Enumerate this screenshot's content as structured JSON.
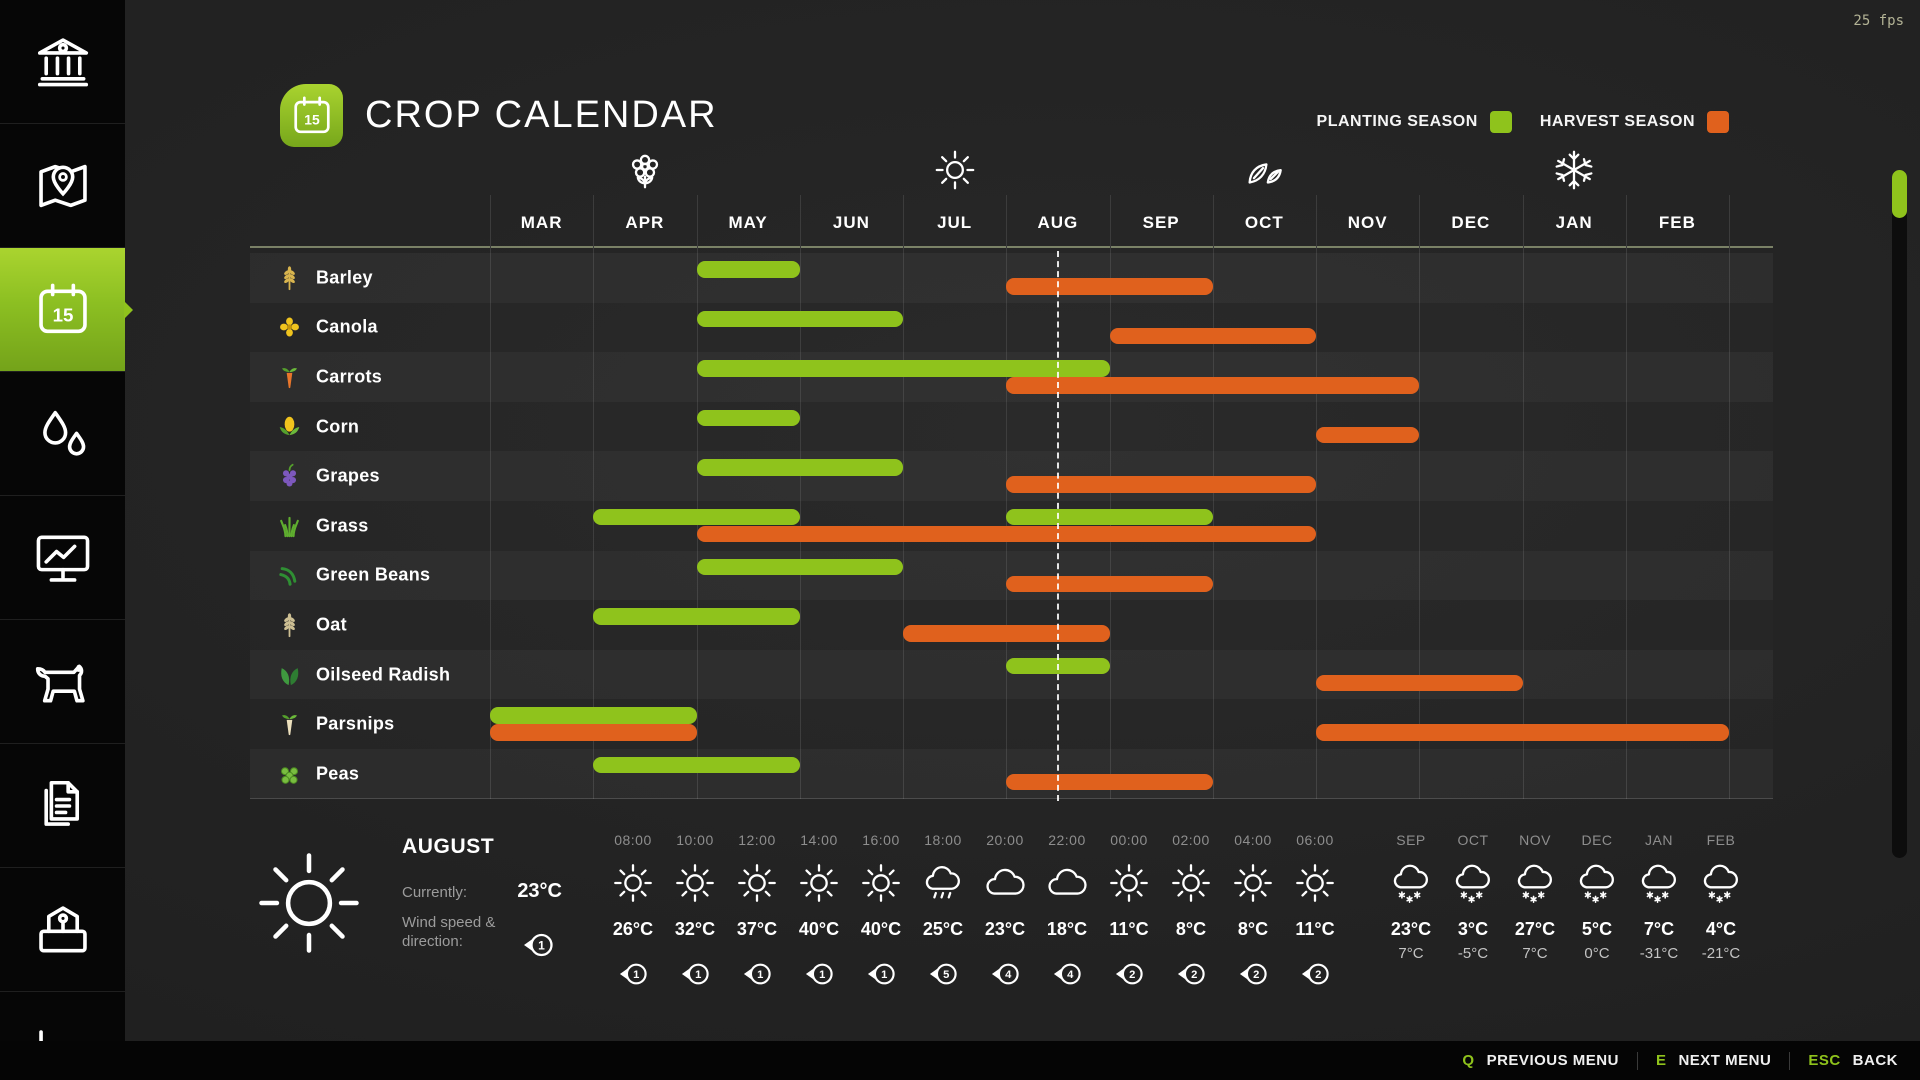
{
  "fps": "25 fps",
  "header": {
    "title": "CROP CALENDAR",
    "icon_day": "15",
    "legend": [
      {
        "id": "planting",
        "label": "PLANTING SEASON",
        "color": "#8fc31c"
      },
      {
        "id": "harvest",
        "label": "HARVEST SEASON",
        "color": "#e0611d"
      }
    ]
  },
  "colors": {
    "planting": "#8fc31c",
    "harvest": "#e0611d"
  },
  "sidebar": {
    "items": [
      {
        "name": "finances",
        "icon": "finances-icon",
        "active": false
      },
      {
        "name": "map",
        "icon": "map-icon",
        "active": false
      },
      {
        "name": "calendar",
        "icon": "calendar-icon",
        "active": true,
        "day": "15"
      },
      {
        "name": "water",
        "icon": "water-drops-icon",
        "active": false
      },
      {
        "name": "prices",
        "icon": "prices-chart-icon",
        "active": false
      },
      {
        "name": "animals",
        "icon": "animals-icon",
        "active": false
      },
      {
        "name": "contracts",
        "icon": "contracts-icon",
        "active": false
      },
      {
        "name": "production",
        "icon": "production-icon",
        "active": false
      },
      {
        "name": "statistics",
        "icon": "statistics-icon",
        "active": false
      }
    ]
  },
  "calendar": {
    "months": [
      "MAR",
      "APR",
      "MAY",
      "JUN",
      "JUL",
      "AUG",
      "SEP",
      "OCT",
      "NOV",
      "DEC",
      "JAN",
      "FEB"
    ],
    "season_icons": [
      {
        "icon": "spring-flower-icon",
        "month_index": 1
      },
      {
        "icon": "summer-sun-icon",
        "month_index": 4
      },
      {
        "icon": "autumn-leaves-icon",
        "month_index": 7
      },
      {
        "icon": "winter-snowflake-icon",
        "month_index": 10
      }
    ],
    "current_time_months": 5.5,
    "crops": [
      {
        "name": "Barley",
        "icon": "barley-icon",
        "planting": [
          [
            2,
            3
          ]
        ],
        "harvest": [
          [
            5,
            7
          ]
        ]
      },
      {
        "name": "Canola",
        "icon": "canola-icon",
        "planting": [
          [
            2,
            4
          ]
        ],
        "harvest": [
          [
            6,
            8
          ]
        ]
      },
      {
        "name": "Carrots",
        "icon": "carrot-icon",
        "planting": [
          [
            2,
            6
          ]
        ],
        "harvest": [
          [
            5,
            9
          ]
        ]
      },
      {
        "name": "Corn",
        "icon": "corn-icon",
        "planting": [
          [
            2,
            3
          ]
        ],
        "harvest": [
          [
            8,
            9
          ]
        ]
      },
      {
        "name": "Grapes",
        "icon": "grapes-icon",
        "planting": [
          [
            2,
            4
          ]
        ],
        "harvest": [
          [
            5,
            8
          ]
        ]
      },
      {
        "name": "Grass",
        "icon": "grass-icon",
        "planting": [
          [
            1,
            3
          ],
          [
            5,
            7
          ]
        ],
        "harvest": [
          [
            2,
            8
          ]
        ]
      },
      {
        "name": "Green Beans",
        "icon": "green-beans-icon",
        "planting": [
          [
            2,
            4
          ]
        ],
        "harvest": [
          [
            5,
            7
          ]
        ]
      },
      {
        "name": "Oat",
        "icon": "oat-icon",
        "planting": [
          [
            1,
            3
          ]
        ],
        "harvest": [
          [
            4,
            6
          ]
        ]
      },
      {
        "name": "Oilseed Radish",
        "icon": "oilseed-radish-icon",
        "planting": [
          [
            5,
            6
          ]
        ],
        "harvest": [
          [
            8,
            10
          ]
        ]
      },
      {
        "name": "Parsnips",
        "icon": "parsnip-icon",
        "planting": [
          [
            0,
            2
          ]
        ],
        "harvest": [
          [
            0,
            2
          ],
          [
            8,
            12
          ]
        ]
      },
      {
        "name": "Peas",
        "icon": "peas-icon",
        "planting": [
          [
            1,
            3
          ]
        ],
        "harvest": [
          [
            5,
            7
          ]
        ]
      }
    ]
  },
  "weather": {
    "month": "AUGUST",
    "currently_label": "Currently:",
    "current_temp": "23°C",
    "wind_label_line1": "Wind speed &",
    "wind_label_line2": "direction:",
    "current_wind": "1",
    "current_icon": "sun-icon",
    "hourly": [
      {
        "time": "08:00",
        "icon": "sun-icon",
        "temp": "26°C",
        "wind": "1"
      },
      {
        "time": "10:00",
        "icon": "sun-icon",
        "temp": "32°C",
        "wind": "1"
      },
      {
        "time": "12:00",
        "icon": "sun-icon",
        "temp": "37°C",
        "wind": "1"
      },
      {
        "time": "14:00",
        "icon": "sun-icon",
        "temp": "40°C",
        "wind": "1"
      },
      {
        "time": "16:00",
        "icon": "sun-icon",
        "temp": "40°C",
        "wind": "1"
      },
      {
        "time": "18:00",
        "icon": "rain-cloud-icon",
        "temp": "25°C",
        "wind": "5"
      },
      {
        "time": "20:00",
        "icon": "cloud-icon",
        "temp": "23°C",
        "wind": "4"
      },
      {
        "time": "22:00",
        "icon": "cloud-icon",
        "temp": "18°C",
        "wind": "4"
      },
      {
        "time": "00:00",
        "icon": "sun-icon",
        "temp": "11°C",
        "wind": "2"
      },
      {
        "time": "02:00",
        "icon": "sun-icon",
        "temp": "8°C",
        "wind": "2"
      },
      {
        "time": "04:00",
        "icon": "sun-icon",
        "temp": "8°C",
        "wind": "2"
      },
      {
        "time": "06:00",
        "icon": "sun-icon",
        "temp": "11°C",
        "wind": "2"
      }
    ],
    "monthly": [
      {
        "month": "SEP",
        "icon": "snow-cloud-icon",
        "high": "23°C",
        "low": "7°C"
      },
      {
        "month": "OCT",
        "icon": "snow-cloud-icon",
        "high": "3°C",
        "low": "-5°C"
      },
      {
        "month": "NOV",
        "icon": "snow-cloud-icon",
        "high": "27°C",
        "low": "7°C"
      },
      {
        "month": "DEC",
        "icon": "snow-cloud-icon",
        "high": "5°C",
        "low": "0°C"
      },
      {
        "month": "JAN",
        "icon": "snow-cloud-icon",
        "high": "7°C",
        "low": "-31°C"
      },
      {
        "month": "FEB",
        "icon": "snow-cloud-icon",
        "high": "4°C",
        "low": "-21°C"
      }
    ]
  },
  "footer": {
    "shortcuts": [
      {
        "key": "Q",
        "label": "PREVIOUS MENU"
      },
      {
        "key": "E",
        "label": "NEXT MENU"
      },
      {
        "key": "ESC",
        "label": "BACK"
      }
    ]
  }
}
